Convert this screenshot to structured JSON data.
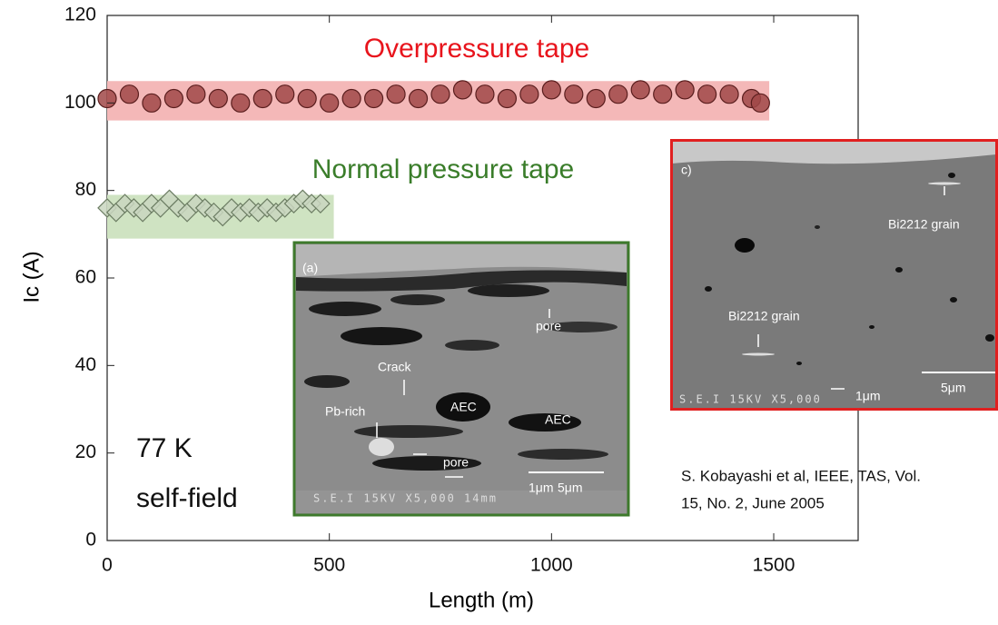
{
  "chart_data": {
    "type": "scatter",
    "xlabel": "Length (m)",
    "ylabel": "Ic (A)",
    "xlim": [
      0,
      1690
    ],
    "ylim": [
      0,
      120
    ],
    "xticks": [
      0,
      500,
      1000,
      1500
    ],
    "yticks": [
      0,
      20,
      40,
      60,
      80,
      100,
      120
    ],
    "series": [
      {
        "name": "Overpressure tape",
        "color": "#a04848",
        "edge": "#5a1e1e",
        "marker": "circle",
        "band_color": "#f4b8b8",
        "band_x": [
          0,
          1490
        ],
        "band_y": [
          96,
          105
        ],
        "x": [
          0,
          50,
          100,
          150,
          200,
          250,
          300,
          350,
          400,
          450,
          500,
          550,
          600,
          650,
          700,
          750,
          800,
          850,
          900,
          950,
          1000,
          1050,
          1100,
          1150,
          1200,
          1250,
          1300,
          1350,
          1400,
          1450,
          1470
        ],
        "values": [
          101,
          102,
          100,
          101,
          102,
          101,
          100,
          101,
          102,
          101,
          100,
          101,
          101,
          102,
          101,
          102,
          103,
          102,
          101,
          102,
          103,
          102,
          101,
          102,
          103,
          102,
          103,
          102,
          102,
          101,
          100
        ]
      },
      {
        "name": "Normal pressure tape",
        "color": "#c9d6c0",
        "edge": "#6b7c62",
        "marker": "diamond",
        "band_color": "#cfe3c2",
        "band_x": [
          0,
          510
        ],
        "band_y": [
          69,
          79
        ],
        "x": [
          0,
          20,
          40,
          60,
          80,
          100,
          120,
          140,
          160,
          180,
          200,
          220,
          240,
          260,
          280,
          300,
          320,
          340,
          360,
          380,
          400,
          420,
          440,
          460,
          480
        ],
        "values": [
          76,
          75,
          77,
          76,
          75,
          77,
          76,
          78,
          76,
          75,
          77,
          76,
          75,
          74,
          76,
          75,
          76,
          75,
          76,
          75,
          76,
          77,
          78,
          77,
          77
        ]
      }
    ],
    "annotations": [
      "77 K",
      "self-field",
      "S. Kobayashi et al, IEEE, TAS, Vol.",
      "15, No. 2, June 2005"
    ]
  },
  "insets": [
    {
      "labels": [
        "(a)",
        "pore",
        "Crack",
        "Pb-rich",
        "AEC",
        "AEC",
        "pore",
        "1μm",
        "5μm",
        "S.E.I  15KV  X5,000  14mm"
      ]
    },
    {
      "labels": [
        "c)",
        "Bi2212 grain",
        "Bi2212 grain",
        "1μm",
        "5μm",
        "S.E.I  15KV  X5,000"
      ]
    }
  ]
}
